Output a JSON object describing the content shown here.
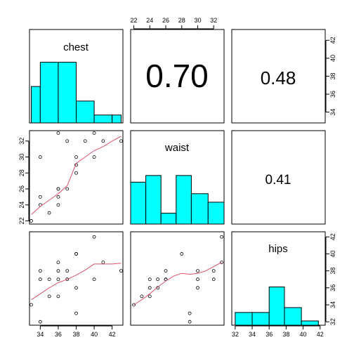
{
  "chart_data": {
    "type": "scatter",
    "variables": [
      "chest",
      "waist",
      "hips"
    ],
    "ranges": {
      "chest": [
        32.8,
        43.2
      ],
      "waist": [
        21.6,
        33.3
      ],
      "hips": [
        31.6,
        42.6
      ]
    },
    "ticks": {
      "chest": [
        34,
        36,
        38,
        40,
        42
      ],
      "waist": [
        22,
        24,
        26,
        28,
        30,
        32
      ],
      "hips": [
        32,
        34,
        36,
        38,
        40,
        42
      ]
    },
    "histograms": {
      "chest": {
        "breaks": [
          33,
          34,
          36,
          38,
          40,
          42,
          43
        ],
        "heights": [
          0.6,
          1.0,
          1.0,
          0.36,
          0.13,
          0.13
        ]
      },
      "waist": {
        "breaks": [
          21.6,
          23.5,
          25.4,
          27.3,
          29.2,
          31.3,
          33.3
        ],
        "heights": [
          0.69,
          0.8,
          0.18,
          0.8,
          0.5,
          0.36
        ]
      },
      "hips": {
        "breaks": [
          32,
          34,
          36,
          37.8,
          39.8,
          41.8
        ],
        "heights": [
          0.21,
          0.21,
          0.63,
          0.29,
          0.07
        ]
      }
    },
    "correlations": [
      {
        "label": "0.70",
        "row": 0,
        "col": 1,
        "size": "large"
      },
      {
        "label": "0.48",
        "row": 0,
        "col": 2,
        "size": "small"
      },
      {
        "label": "0.41",
        "row": 1,
        "col": 2,
        "size": "small"
      }
    ],
    "scatter_chest_waist": {
      "x": [
        33,
        34,
        34,
        34,
        35,
        36,
        36,
        36,
        36,
        36,
        37,
        37,
        38,
        38,
        38,
        39,
        40,
        40,
        41,
        43
      ],
      "y": [
        22,
        24,
        25,
        30,
        23,
        24,
        25,
        26,
        26,
        33,
        26,
        32,
        28,
        29,
        30,
        32,
        30,
        33,
        32,
        32
      ]
    },
    "smooth_chest_waist": {
      "x": [
        33,
        34,
        35,
        36,
        37,
        38,
        39,
        40,
        41,
        42,
        43
      ],
      "y": [
        22.8,
        23.8,
        24.6,
        25.4,
        26.4,
        29.2,
        30.0,
        30.8,
        31.3,
        32.0,
        32.6
      ]
    },
    "scatter_chest_hips": {
      "x": [
        33,
        34,
        34,
        34,
        35,
        35,
        36,
        36,
        36,
        36,
        37,
        37,
        38,
        38,
        38,
        38,
        40,
        40,
        41,
        43
      ],
      "y": [
        34,
        32,
        37,
        38,
        35,
        37,
        35,
        37,
        38,
        39,
        37,
        38,
        33,
        36,
        40,
        40,
        37,
        42,
        39,
        38
      ]
    },
    "smooth_chest_hips": {
      "x": [
        33,
        34,
        35,
        36,
        37,
        38,
        39,
        40,
        41,
        42,
        43
      ],
      "y": [
        34.6,
        35.3,
        36.0,
        36.6,
        37.0,
        37.5,
        38.1,
        38.8,
        38.8,
        38.8,
        38.9
      ]
    },
    "scatter_waist_hips": {
      "x": [
        22,
        23,
        24,
        24,
        24,
        25,
        25,
        26,
        26,
        26,
        28,
        29,
        29,
        30,
        30,
        30,
        32,
        32,
        33,
        33
      ],
      "y": [
        34,
        35,
        35,
        36,
        37,
        36,
        37,
        37,
        37,
        38,
        40,
        33,
        32,
        37,
        36,
        38,
        38,
        37,
        39,
        42
      ]
    },
    "smooth_waist_hips": {
      "x": [
        22,
        23,
        24,
        25,
        26,
        27,
        28,
        29,
        30,
        31,
        32,
        33
      ],
      "y": [
        34.0,
        34.6,
        35.3,
        36.1,
        36.8,
        37.4,
        37.7,
        37.6,
        37.7,
        38.0,
        38.5,
        39.0
      ]
    },
    "colors": {
      "bar_fill": "#00FFFF",
      "smooth_line": "#DF536B",
      "point_stroke": "#000000"
    }
  }
}
